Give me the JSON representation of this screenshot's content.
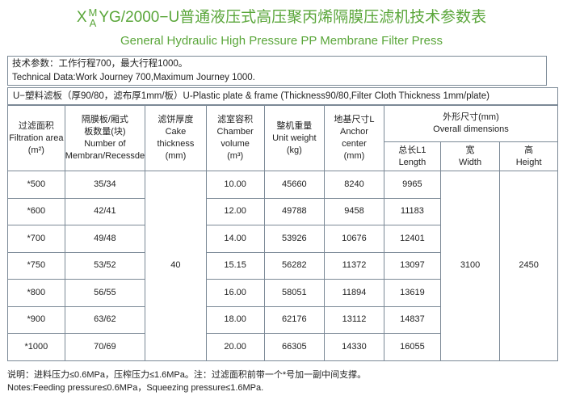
{
  "header": {
    "title": {
      "prefix": "X",
      "sup": "M",
      "sub": "A",
      "main": "YG/2000−U普通液压式高压聚丙烯隔膜压滤机技术参数表"
    },
    "subtitle": "General Hydraulic High Pressure PP Membrane Filter Press"
  },
  "tech": {
    "lines": [
      "技术参数：工作行程700，最大行程1000。",
      "Technical Data:Work Journey 700,Maximum Journey 1000."
    ]
  },
  "plate_note": "U−塑料滤板（厚90/80，滤布厚1mm/板）U-Plastic plate & frame (Thickness90/80,Filter Cloth Thickness 1mm/plate)",
  "table": {
    "headers": [
      [
        "过滤面积",
        "Filtration area",
        "(m²)"
      ],
      [
        "隔膜板/厢式",
        "板数量(块)",
        "Number of",
        "Membran/Recessde"
      ],
      [
        "滤饼厚度",
        "Cake",
        "thickness",
        "(mm)"
      ],
      [
        "滤室容积",
        "Chamber",
        "volume",
        "(m³)"
      ],
      [
        "整机重量",
        "Unit weight",
        "(kg)"
      ],
      [
        "地基尺寸L",
        "Anchor",
        "center",
        "(mm)"
      ]
    ],
    "group_header": [
      "外形尺寸(mm)",
      "Overall  dimensions"
    ],
    "sub_headers": [
      [
        "总长L1",
        "Length"
      ],
      [
        "宽",
        "Width"
      ],
      [
        "高",
        "Height"
      ]
    ],
    "rows": [
      [
        "*500",
        "35/34",
        "10.00",
        "45660",
        "8240",
        "9965"
      ],
      [
        "*600",
        "42/41",
        "12.00",
        "49788",
        "9458",
        "11183"
      ],
      [
        "*700",
        "49/48",
        "14.00",
        "53926",
        "10676",
        "12401"
      ],
      [
        "*750",
        "53/52",
        "15.15",
        "56282",
        "11372",
        "13097"
      ],
      [
        "*800",
        "56/55",
        "16.00",
        "58051",
        "11894",
        "13619"
      ],
      [
        "*900",
        "63/62",
        "18.00",
        "62176",
        "13112",
        "14837"
      ],
      [
        "*1000",
        "70/69",
        "20.00",
        "66305",
        "14330",
        "16055"
      ]
    ],
    "cake_thickness": "40",
    "width": "3100",
    "height": "2450"
  },
  "notes": [
    "说明：进料压力≤0.6MPa，压榨压力≤1.6MPa。注：过滤面积前带一个*号加一副中间支撑。",
    "Notes:Feeding pressure≤0.6MPa，Squeezing pressure≤1.6MPa."
  ]
}
